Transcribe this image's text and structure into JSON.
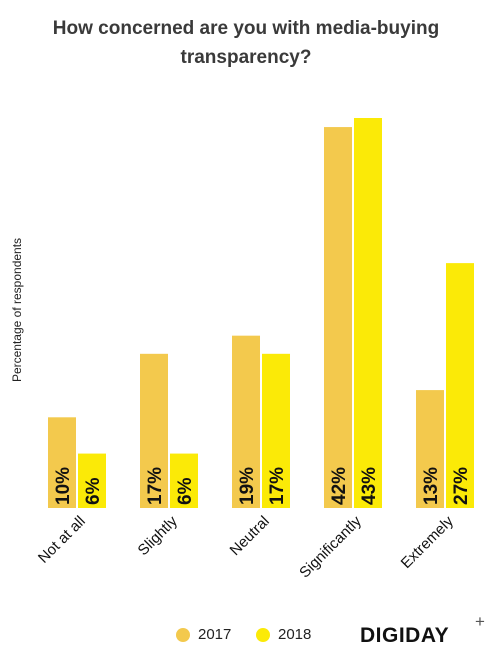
{
  "brand": {
    "name": "DIGIDAY",
    "mark": "+"
  },
  "colors": {
    "series_2017": "#f3c94d",
    "series_2018": "#fbea07",
    "title": "#3a3a3a",
    "label": "#111111"
  },
  "chart_data": {
    "type": "bar",
    "title_lines": [
      "How concerned are you with media-buying",
      "transparency?"
    ],
    "ylabel": "Percentage of respondents",
    "categories": [
      "Not at all",
      "Slightly",
      "Neutral",
      "Significantly",
      "Extremely"
    ],
    "series": [
      {
        "name": "2017",
        "values": [
          10,
          17,
          19,
          42,
          13
        ],
        "labels": [
          "10%",
          "17%",
          "19%",
          "42%",
          "13%"
        ]
      },
      {
        "name": "2018",
        "values": [
          6,
          6,
          17,
          43,
          27
        ],
        "labels": [
          "6%",
          "6%",
          "17%",
          "43%",
          "27%"
        ]
      }
    ],
    "ylim": [
      0,
      43
    ],
    "grid": false,
    "legend": "bottom"
  }
}
